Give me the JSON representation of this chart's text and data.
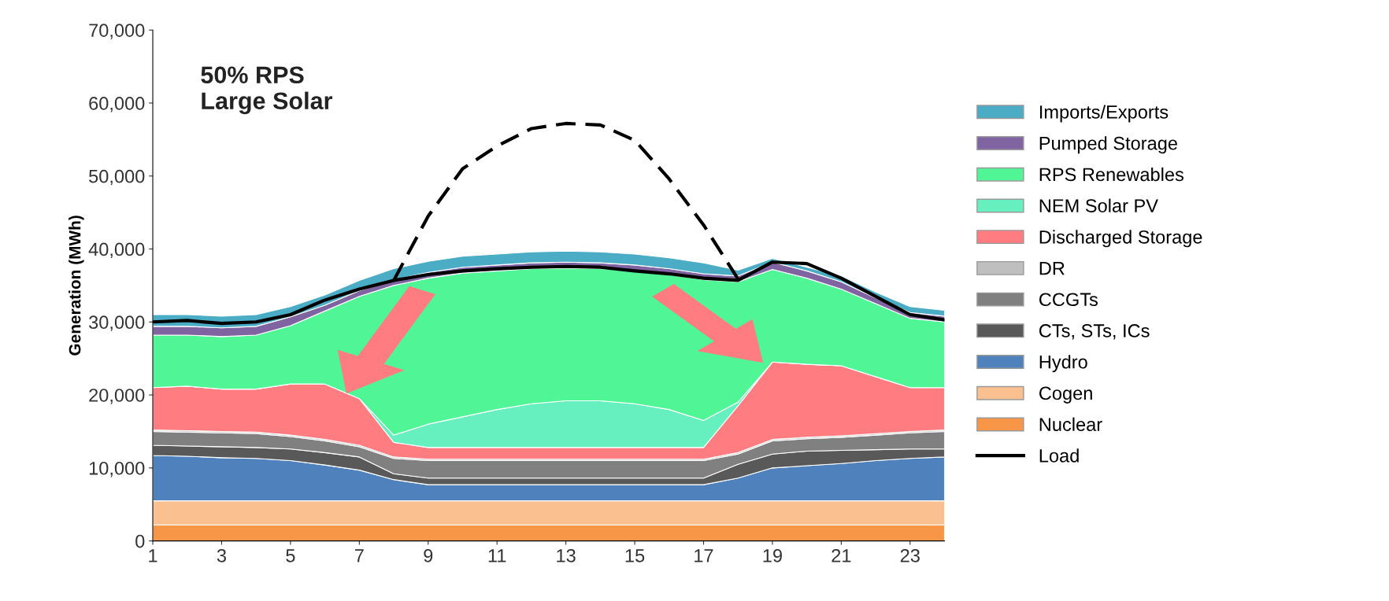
{
  "chart_data": {
    "type": "area",
    "stacked": true,
    "ylabel": "Generation (MWh)",
    "annotations": [
      "50% RPS\nLarge Solar"
    ],
    "x": [
      1,
      2,
      3,
      4,
      5,
      6,
      7,
      8,
      9,
      10,
      11,
      12,
      13,
      14,
      15,
      16,
      17,
      18,
      19,
      20,
      21,
      22,
      23,
      24
    ],
    "xlim": [
      1,
      24
    ],
    "xticks": [
      1,
      3,
      5,
      7,
      9,
      11,
      13,
      15,
      17,
      19,
      21,
      23
    ],
    "ylim": [
      0,
      70000
    ],
    "yticks": [
      {
        "value": 0,
        "label": "0"
      },
      {
        "value": 10000,
        "label": "10,000"
      },
      {
        "value": 20000,
        "label": "20,000"
      },
      {
        "value": 30000,
        "label": "30,000"
      },
      {
        "value": 40000,
        "label": "40,000"
      },
      {
        "value": 50000,
        "label": "50,000"
      },
      {
        "value": 60000,
        "label": "60,000"
      },
      {
        "value": 70000,
        "label": "70,000"
      }
    ],
    "grid": false,
    "legend": "right",
    "series": [
      {
        "name": "Nuclear",
        "color": "#f79646",
        "values": [
          2200,
          2200,
          2200,
          2200,
          2200,
          2200,
          2200,
          2200,
          2200,
          2200,
          2200,
          2200,
          2200,
          2200,
          2200,
          2200,
          2200,
          2200,
          2200,
          2200,
          2200,
          2200,
          2200,
          2200
        ]
      },
      {
        "name": "Cogen",
        "color": "#fac090",
        "values": [
          3300,
          3300,
          3300,
          3300,
          3300,
          3300,
          3300,
          3300,
          3300,
          3300,
          3300,
          3300,
          3300,
          3300,
          3300,
          3300,
          3300,
          3300,
          3300,
          3300,
          3300,
          3300,
          3300,
          3300
        ]
      },
      {
        "name": "Hydro",
        "color": "#4f81bd",
        "values": [
          6200,
          6100,
          5900,
          5800,
          5500,
          4900,
          4200,
          2900,
          2200,
          2200,
          2200,
          2200,
          2200,
          2200,
          2200,
          2200,
          2200,
          3100,
          4500,
          4800,
          5100,
          5500,
          5800,
          6000
        ]
      },
      {
        "name": "CTs, STs, ICs",
        "color": "#595959",
        "values": [
          1400,
          1400,
          1500,
          1500,
          1600,
          1700,
          1800,
          800,
          900,
          900,
          900,
          900,
          900,
          900,
          900,
          900,
          900,
          1900,
          1900,
          2000,
          1800,
          1500,
          1300,
          1100
        ]
      },
      {
        "name": "CCGTs",
        "color": "#808080",
        "values": [
          1900,
          1900,
          1900,
          1900,
          1700,
          1600,
          1400,
          2100,
          2400,
          2400,
          2400,
          2400,
          2400,
          2400,
          2400,
          2400,
          2400,
          1400,
          1800,
          1700,
          1800,
          2000,
          2200,
          2400
        ]
      },
      {
        "name": "DR",
        "color": "#bfbfbf",
        "values": [
          200,
          200,
          200,
          200,
          200,
          200,
          200,
          200,
          200,
          200,
          200,
          200,
          200,
          200,
          200,
          200,
          200,
          200,
          200,
          200,
          200,
          200,
          200,
          200
        ]
      },
      {
        "name": "Discharged Storage",
        "color": "#ff7c80",
        "values": [
          5800,
          6100,
          5800,
          5900,
          7000,
          7600,
          6400,
          2000,
          1600,
          1600,
          1600,
          1600,
          1600,
          1600,
          1600,
          1600,
          1600,
          6400,
          10600,
          10000,
          9600,
          7800,
          6000,
          5800
        ]
      },
      {
        "name": "NEM Solar PV",
        "color": "#66f0c0",
        "values": [
          0,
          0,
          0,
          0,
          0,
          0,
          0,
          1000,
          3200,
          4200,
          5200,
          6000,
          6400,
          6400,
          6000,
          5200,
          3700,
          500,
          0,
          0,
          0,
          0,
          0,
          0
        ]
      },
      {
        "name": "RPS Renewables",
        "color": "#50f596",
        "values": [
          7200,
          7000,
          7200,
          7400,
          8000,
          10000,
          14000,
          20500,
          20000,
          19700,
          19000,
          18500,
          18200,
          18100,
          18200,
          18500,
          19300,
          16500,
          12700,
          11800,
          10500,
          10000,
          9500,
          9000
        ]
      },
      {
        "name": "Pumped Storage",
        "color": "#8064a2",
        "values": [
          1200,
          1200,
          1200,
          1200,
          1200,
          800,
          800,
          800,
          800,
          800,
          800,
          800,
          800,
          800,
          800,
          800,
          800,
          800,
          1000,
          1000,
          1000,
          800,
          800,
          800
        ]
      },
      {
        "name": "Imports/Exports",
        "color": "#4bacc6",
        "values": [
          1600,
          1600,
          1600,
          1600,
          1400,
          1400,
          1400,
          1500,
          1500,
          1500,
          1500,
          1500,
          1500,
          1500,
          1500,
          1500,
          1500,
          800,
          500,
          500,
          800,
          800,
          800,
          800
        ]
      },
      {
        "name": "Load",
        "type": "line",
        "color": "#000000",
        "line_style": "solid",
        "values": [
          30000,
          30200,
          29800,
          30000,
          31000,
          33000,
          34500,
          35700,
          36500,
          37000,
          37300,
          37500,
          37600,
          37500,
          37000,
          36600,
          36000,
          35700,
          38200,
          38000,
          36000,
          33500,
          31000,
          30300
        ]
      },
      {
        "type": "line",
        "color": "#000000",
        "line_style": "dashed",
        "x": [
          8,
          9,
          10,
          11,
          12,
          13,
          14,
          15,
          16,
          17,
          18
        ],
        "values": [
          35700,
          44500,
          51000,
          54100,
          56500,
          57200,
          57000,
          54900,
          49600,
          43300,
          35900
        ]
      }
    ]
  }
}
